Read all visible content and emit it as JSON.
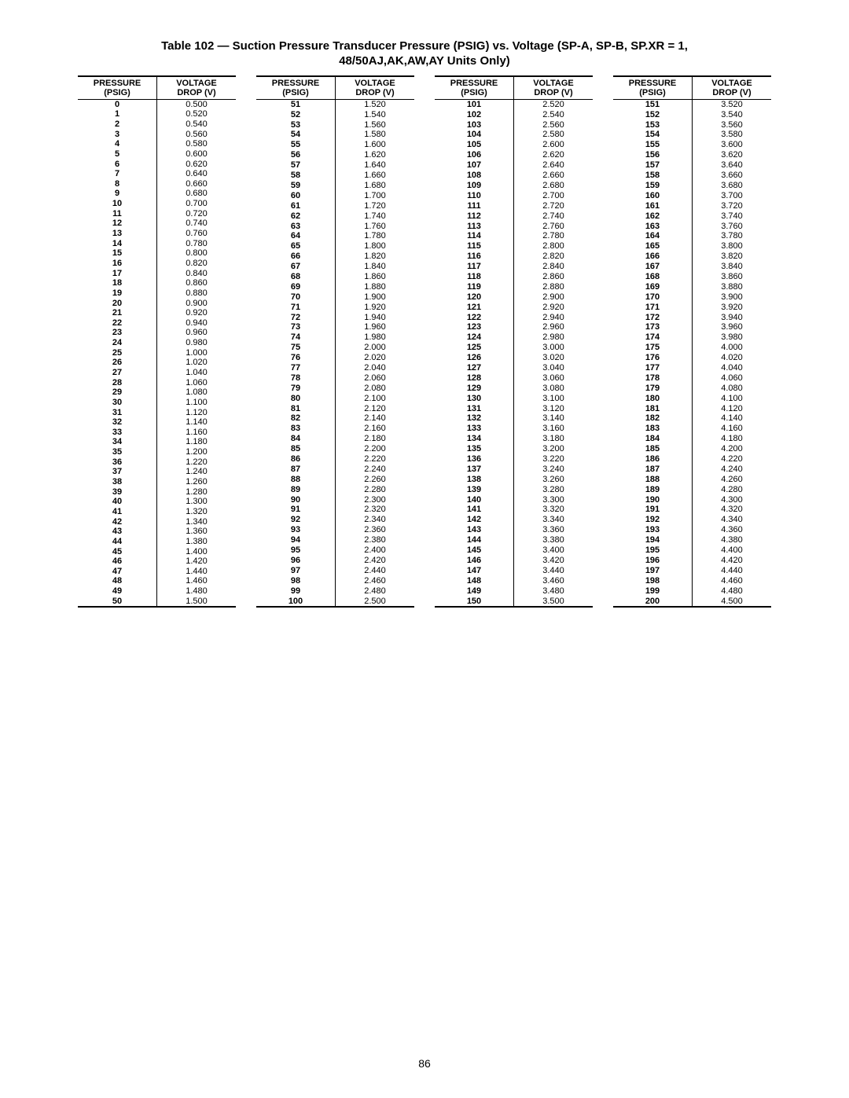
{
  "title_line1": "Table 102 — Suction Pressure Transducer Pressure (PSIG) vs. Voltage (SP-A, SP-B, SP.XR = 1,",
  "title_line2": "48/50AJ,AK,AW,AY Units Only)",
  "page_number": "86",
  "headers": {
    "pressure_l1": "PRESSURE",
    "pressure_l2": "(PSIG)",
    "voltage_l1": "VOLTAGE",
    "voltage_l2": "DROP (V)"
  },
  "table": {
    "type": "table",
    "background_color": "#ffffff",
    "text_color": "#000000",
    "header_fontsize": 11,
    "body_fontsize": 11,
    "pressure_start": 0,
    "pressure_end": 200,
    "voltage_start": 0.5,
    "voltage_step": 0.02,
    "column_splits": [
      [
        0,
        50
      ],
      [
        51,
        100
      ],
      [
        101,
        150
      ],
      [
        151,
        200
      ]
    ]
  }
}
